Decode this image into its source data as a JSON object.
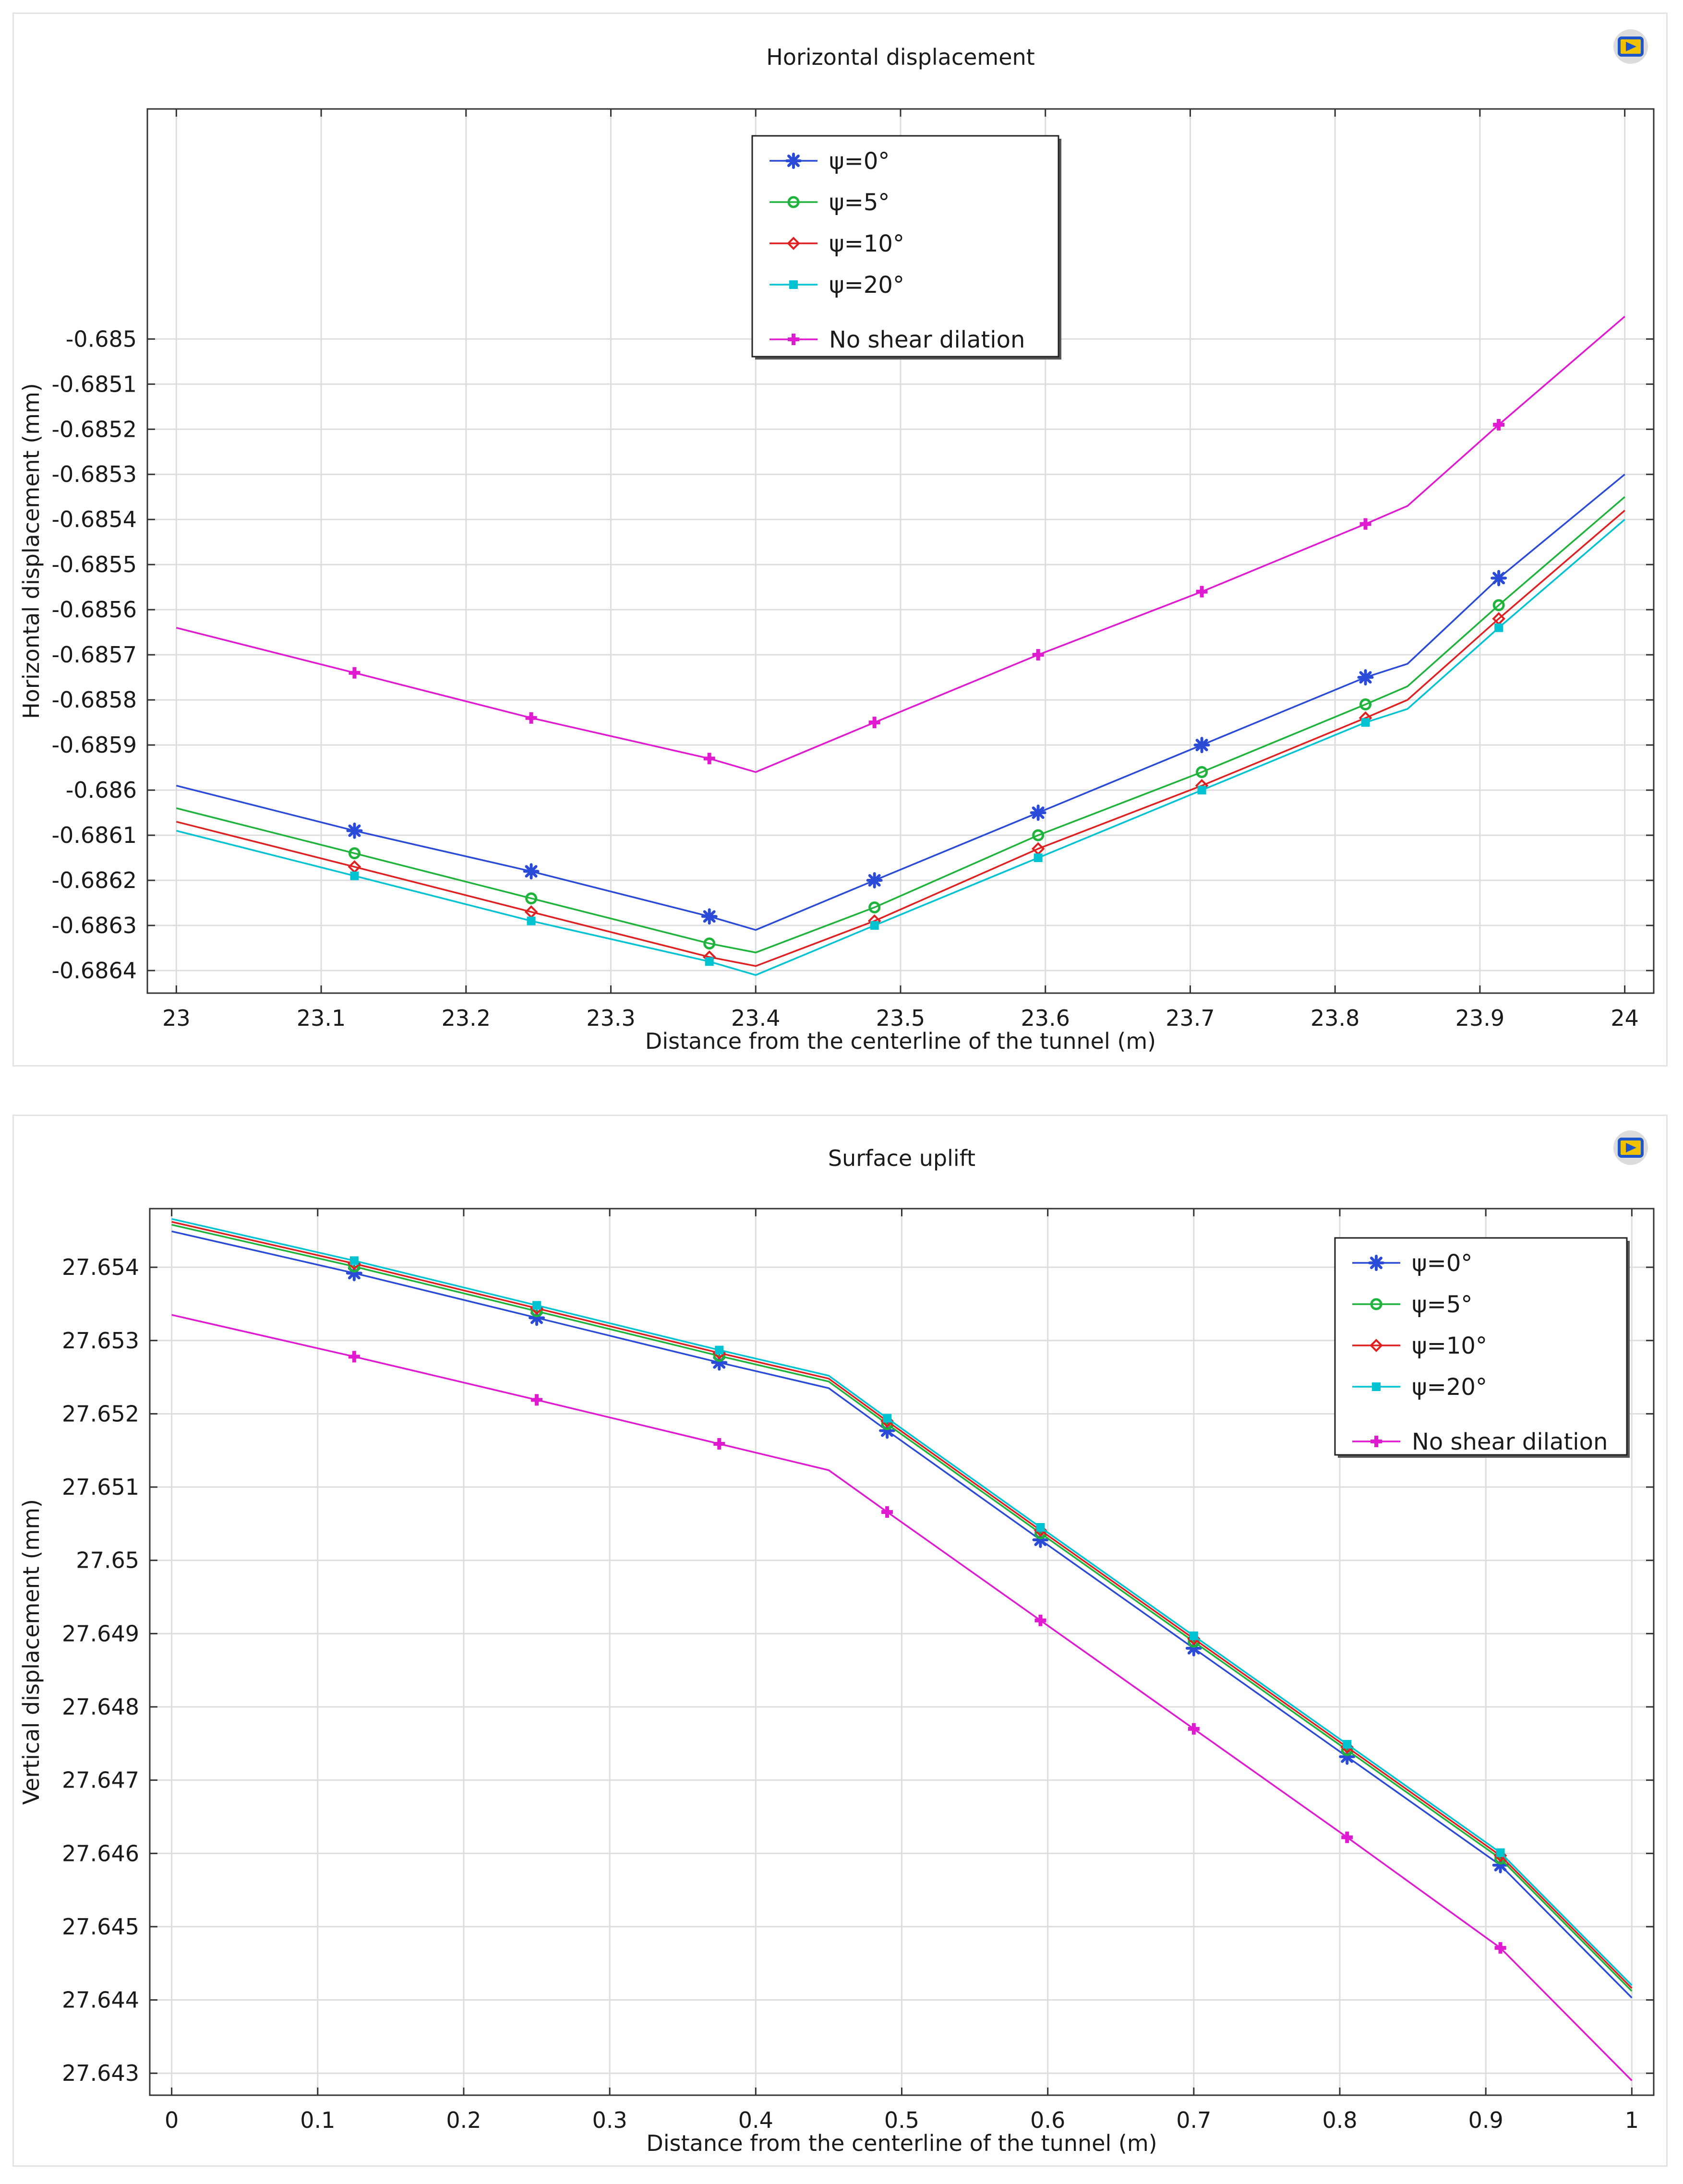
{
  "chart_data": [
    {
      "type": "line",
      "title": "Horizontal displacement",
      "xlabel": "Distance from the centerline of the tunnel (m)",
      "ylabel": "Horizontal displacement (mm)",
      "xlim": [
        22.98,
        24.02
      ],
      "ylim": [
        -0.68645,
        -0.68449
      ],
      "xticks": [
        23,
        23.1,
        23.2,
        23.3,
        23.4,
        23.5,
        23.6,
        23.7,
        23.8,
        23.9,
        24
      ],
      "xtick_labels": [
        "23",
        "23.1",
        "23.2",
        "23.3",
        "23.4",
        "23.5",
        "23.6",
        "23.7",
        "23.8",
        "23.9",
        "24"
      ],
      "yticks": [
        -0.685,
        -0.6851,
        -0.6852,
        -0.6853,
        -0.6854,
        -0.6855,
        -0.6856,
        -0.6857,
        -0.6858,
        -0.6859,
        -0.686,
        -0.6861,
        -0.6862,
        -0.6863,
        -0.6864
      ],
      "ytick_labels": [
        "-0.685",
        "-0.6851",
        "-0.6852",
        "-0.6853",
        "-0.6854",
        "-0.6855",
        "-0.6856",
        "-0.6857",
        "-0.6858",
        "-0.6859",
        "-0.686",
        "-0.6861",
        "-0.6862",
        "-0.6863",
        "-0.6864"
      ],
      "grid": true,
      "legend_position": "top-center",
      "series": [
        {
          "name": "ψ=0°",
          "color": "#2a4bd7",
          "marker": "star",
          "x": [
            23,
            23.123,
            23.245,
            23.368,
            23.4,
            23.482,
            23.595,
            23.708,
            23.821,
            23.85,
            23.913,
            24
          ],
          "y": [
            -0.68599,
            -0.68609,
            -0.68618,
            -0.68628,
            -0.68631,
            -0.6862,
            -0.68605,
            -0.6859,
            -0.68575,
            -0.68572,
            -0.68553,
            -0.6853
          ],
          "marker_x": [
            23.123,
            23.245,
            23.368,
            23.482,
            23.595,
            23.708,
            23.821,
            23.913
          ],
          "marker_y": [
            -0.68609,
            -0.68618,
            -0.68628,
            -0.6862,
            -0.68605,
            -0.6859,
            -0.68575,
            -0.68553
          ]
        },
        {
          "name": "ψ=5°",
          "color": "#1eb33a",
          "marker": "circle",
          "x": [
            23,
            23.123,
            23.245,
            23.368,
            23.4,
            23.482,
            23.595,
            23.708,
            23.821,
            23.85,
            23.913,
            24
          ],
          "y": [
            -0.68604,
            -0.68614,
            -0.68624,
            -0.68634,
            -0.68636,
            -0.68626,
            -0.6861,
            -0.68596,
            -0.68581,
            -0.68577,
            -0.68559,
            -0.68535
          ],
          "marker_x": [
            23.123,
            23.245,
            23.368,
            23.482,
            23.595,
            23.708,
            23.821,
            23.913
          ],
          "marker_y": [
            -0.68614,
            -0.68624,
            -0.68634,
            -0.68626,
            -0.6861,
            -0.68596,
            -0.68581,
            -0.68559
          ]
        },
        {
          "name": "ψ=10°",
          "color": "#e02020",
          "marker": "diamond",
          "x": [
            23,
            23.123,
            23.245,
            23.368,
            23.4,
            23.482,
            23.595,
            23.708,
            23.821,
            23.85,
            23.913,
            24
          ],
          "y": [
            -0.68607,
            -0.68617,
            -0.68627,
            -0.68637,
            -0.68639,
            -0.68629,
            -0.68613,
            -0.68599,
            -0.68584,
            -0.6858,
            -0.68562,
            -0.68538
          ],
          "marker_x": [
            23.123,
            23.245,
            23.368,
            23.482,
            23.595,
            23.708,
            23.821,
            23.913
          ],
          "marker_y": [
            -0.68617,
            -0.68627,
            -0.68637,
            -0.68629,
            -0.68613,
            -0.68599,
            -0.68584,
            -0.68562
          ]
        },
        {
          "name": "ψ=20°",
          "color": "#00c3d2",
          "marker": "square",
          "x": [
            23,
            23.123,
            23.245,
            23.368,
            23.4,
            23.482,
            23.595,
            23.708,
            23.821,
            23.85,
            23.913,
            24
          ],
          "y": [
            -0.68609,
            -0.68619,
            -0.68629,
            -0.68638,
            -0.68641,
            -0.6863,
            -0.68615,
            -0.686,
            -0.68585,
            -0.68582,
            -0.68564,
            -0.6854
          ],
          "marker_x": [
            23.123,
            23.245,
            23.368,
            23.482,
            23.595,
            23.708,
            23.821,
            23.913
          ],
          "marker_y": [
            -0.68619,
            -0.68629,
            -0.68638,
            -0.6863,
            -0.68615,
            -0.686,
            -0.68585,
            -0.68564
          ]
        },
        {
          "name": "No shear dilation",
          "color": "#e01ad0",
          "marker": "plus",
          "x": [
            23,
            23.123,
            23.245,
            23.368,
            23.4,
            23.482,
            23.595,
            23.708,
            23.821,
            23.85,
            23.913,
            24
          ],
          "y": [
            -0.68564,
            -0.68574,
            -0.68584,
            -0.68593,
            -0.68596,
            -0.68585,
            -0.6857,
            -0.68556,
            -0.68541,
            -0.68537,
            -0.68519,
            -0.68495
          ],
          "marker_x": [
            23.123,
            23.245,
            23.368,
            23.482,
            23.595,
            23.708,
            23.821,
            23.913
          ],
          "marker_y": [
            -0.68574,
            -0.68584,
            -0.68593,
            -0.68585,
            -0.6857,
            -0.68556,
            -0.68541,
            -0.68519
          ]
        }
      ]
    },
    {
      "type": "line",
      "title": "Surface uplift",
      "xlabel": "Distance from the centerline of the tunnel (m)",
      "ylabel": "Vertical displacement (mm)",
      "xlim": [
        -0.015,
        1.015
      ],
      "ylim": [
        27.6427,
        27.6548
      ],
      "xticks": [
        0,
        0.1,
        0.2,
        0.3,
        0.4,
        0.5,
        0.6,
        0.7,
        0.8,
        0.9,
        1
      ],
      "xtick_labels": [
        "0",
        "0.1",
        "0.2",
        "0.3",
        "0.4",
        "0.5",
        "0.6",
        "0.7",
        "0.8",
        "0.9",
        "1"
      ],
      "yticks": [
        27.654,
        27.653,
        27.652,
        27.651,
        27.65,
        27.649,
        27.648,
        27.647,
        27.646,
        27.645,
        27.644,
        27.643
      ],
      "ytick_labels": [
        "27.654",
        "27.653",
        "27.652",
        "27.651",
        "27.65",
        "27.649",
        "27.648",
        "27.647",
        "27.646",
        "27.645",
        "27.644",
        "27.643"
      ],
      "grid": true,
      "legend_position": "top-right",
      "series": [
        {
          "name": "ψ=0°",
          "color": "#2a4bd7",
          "marker": "star",
          "x": [
            0,
            0.125,
            0.25,
            0.375,
            0.45,
            0.49,
            0.595,
            0.7,
            0.805,
            0.91,
            1
          ],
          "y": [
            27.65449,
            27.65392,
            27.65331,
            27.6527,
            27.65235,
            27.65177,
            27.65028,
            27.6488,
            27.64732,
            27.64584,
            27.64403
          ],
          "marker_x": [
            0.125,
            0.25,
            0.375,
            0.49,
            0.595,
            0.7,
            0.805,
            0.91
          ],
          "marker_y": [
            27.65392,
            27.65331,
            27.6527,
            27.65177,
            27.65028,
            27.6488,
            27.64732,
            27.64584
          ]
        },
        {
          "name": "ψ=5°",
          "color": "#1eb33a",
          "marker": "circle",
          "x": [
            0,
            0.125,
            0.25,
            0.375,
            0.45,
            0.49,
            0.595,
            0.7,
            0.805,
            0.91,
            1
          ],
          "y": [
            27.65458,
            27.65401,
            27.6534,
            27.65279,
            27.65244,
            27.65186,
            27.65037,
            27.64889,
            27.64741,
            27.64593,
            27.64412
          ],
          "marker_x": [
            0.125,
            0.25,
            0.375,
            0.49,
            0.595,
            0.7,
            0.805,
            0.91
          ],
          "marker_y": [
            27.65401,
            27.6534,
            27.65279,
            27.65186,
            27.65037,
            27.64889,
            27.64741,
            27.64593
          ]
        },
        {
          "name": "ψ=10°",
          "color": "#e02020",
          "marker": "diamond",
          "x": [
            0,
            0.125,
            0.25,
            0.375,
            0.45,
            0.49,
            0.595,
            0.7,
            0.805,
            0.91,
            1
          ],
          "y": [
            27.65462,
            27.65405,
            27.65344,
            27.65283,
            27.65248,
            27.6519,
            27.65041,
            27.64893,
            27.64745,
            27.64597,
            27.64416
          ],
          "marker_x": [
            0.125,
            0.25,
            0.375,
            0.49,
            0.595,
            0.7,
            0.805,
            0.91
          ],
          "marker_y": [
            27.65405,
            27.65344,
            27.65283,
            27.6519,
            27.65041,
            27.64893,
            27.64745,
            27.64597
          ]
        },
        {
          "name": "ψ=20°",
          "color": "#00c3d2",
          "marker": "square",
          "x": [
            0,
            0.125,
            0.25,
            0.375,
            0.45,
            0.49,
            0.595,
            0.7,
            0.805,
            0.91,
            1
          ],
          "y": [
            27.65466,
            27.65409,
            27.65348,
            27.65287,
            27.65252,
            27.65194,
            27.65045,
            27.64897,
            27.64749,
            27.64601,
            27.6442
          ],
          "marker_x": [
            0.125,
            0.25,
            0.375,
            0.49,
            0.595,
            0.7,
            0.805,
            0.91
          ],
          "marker_y": [
            27.65409,
            27.65348,
            27.65287,
            27.65194,
            27.65045,
            27.64897,
            27.64749,
            27.64601
          ]
        },
        {
          "name": "No shear dilation",
          "color": "#e01ad0",
          "marker": "plus",
          "x": [
            0,
            0.125,
            0.25,
            0.375,
            0.45,
            0.49,
            0.595,
            0.7,
            0.805,
            0.91,
            1
          ],
          "y": [
            27.65335,
            27.65278,
            27.65219,
            27.65159,
            27.65123,
            27.65066,
            27.64918,
            27.6477,
            27.64622,
            27.64471,
            27.6429
          ],
          "marker_x": [
            0.125,
            0.25,
            0.375,
            0.49,
            0.595,
            0.7,
            0.805,
            0.91
          ],
          "marker_y": [
            27.65278,
            27.65219,
            27.65159,
            27.65066,
            27.64918,
            27.6477,
            27.64622,
            27.64471
          ]
        }
      ]
    }
  ],
  "icons": {
    "corner": "image-icon"
  }
}
